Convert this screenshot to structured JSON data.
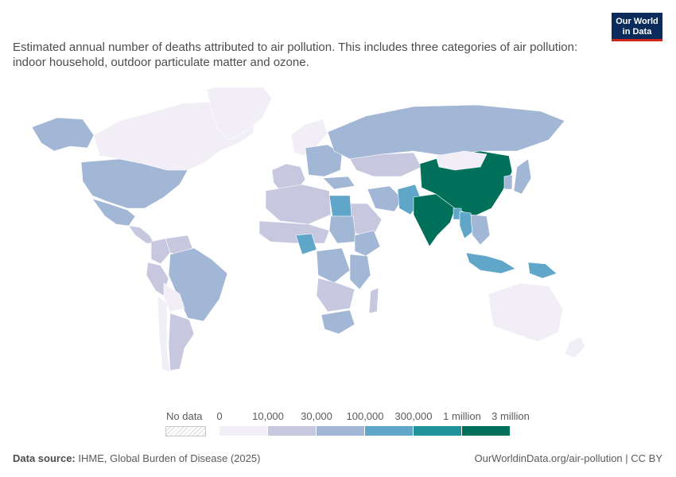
{
  "header": {
    "subtitle": "Estimated annual number of deaths attributed to air pollution. This includes three categories of air pollution: indoor household, outdoor particulate matter and ozone.",
    "logo_line1": "Our World",
    "logo_line2": "in Data"
  },
  "legend": {
    "no_data_label": "No data",
    "ticks": [
      "0",
      "10,000",
      "30,000",
      "100,000",
      "300,000",
      "1 million",
      "3 million"
    ],
    "colors": [
      "#f1eef6",
      "#c7c7e0",
      "#a2b6d6",
      "#5fa6c9",
      "#23939b",
      "#00705a"
    ]
  },
  "map": {
    "regions": [
      {
        "name": "Canada",
        "bin": 0
      },
      {
        "name": "Greenland",
        "bin": 0
      },
      {
        "name": "Alaska",
        "bin": 2
      },
      {
        "name": "United States",
        "bin": 2
      },
      {
        "name": "Mexico",
        "bin": 2
      },
      {
        "name": "Central America",
        "bin": 1
      },
      {
        "name": "Colombia",
        "bin": 1
      },
      {
        "name": "Venezuela",
        "bin": 1
      },
      {
        "name": "Brazil",
        "bin": 2
      },
      {
        "name": "Peru",
        "bin": 1
      },
      {
        "name": "Bolivia",
        "bin": 0
      },
      {
        "name": "Argentina",
        "bin": 1
      },
      {
        "name": "Chile",
        "bin": 0
      },
      {
        "name": "Western Europe",
        "bin": 1
      },
      {
        "name": "Scandinavia",
        "bin": 0
      },
      {
        "name": "Eastern Europe",
        "bin": 2
      },
      {
        "name": "Russia",
        "bin": 2
      },
      {
        "name": "Kazakhstan",
        "bin": 1
      },
      {
        "name": "Turkey",
        "bin": 2
      },
      {
        "name": "Iran",
        "bin": 2
      },
      {
        "name": "Saudi Arabia",
        "bin": 1
      },
      {
        "name": "Pakistan",
        "bin": 3
      },
      {
        "name": "India",
        "bin": 5
      },
      {
        "name": "China",
        "bin": 5
      },
      {
        "name": "Mongolia",
        "bin": 0
      },
      {
        "name": "Bangladesh",
        "bin": 3
      },
      {
        "name": "Myanmar",
        "bin": 3
      },
      {
        "name": "Southeast Asia",
        "bin": 2
      },
      {
        "name": "Indonesia",
        "bin": 3
      },
      {
        "name": "Papua New Guinea",
        "bin": 3
      },
      {
        "name": "Japan",
        "bin": 2
      },
      {
        "name": "Korea",
        "bin": 2
      },
      {
        "name": "Australia",
        "bin": 0
      },
      {
        "name": "New Zealand",
        "bin": 0
      },
      {
        "name": "North Africa",
        "bin": 1
      },
      {
        "name": "Egypt",
        "bin": 3
      },
      {
        "name": "Sahel",
        "bin": 1
      },
      {
        "name": "Nigeria",
        "bin": 3
      },
      {
        "name": "Sudan",
        "bin": 2
      },
      {
        "name": "Ethiopia",
        "bin": 2
      },
      {
        "name": "Central Africa",
        "bin": 2
      },
      {
        "name": "East Africa",
        "bin": 2
      },
      {
        "name": "Southern Africa",
        "bin": 1
      },
      {
        "name": "South Africa",
        "bin": 2
      },
      {
        "name": "Madagascar",
        "bin": 1
      }
    ]
  },
  "footer": {
    "source_label": "Data source:",
    "source_text": "IHME, Global Burden of Disease (2025)",
    "url_license": "OurWorldinData.org/air-pollution | CC BY"
  }
}
